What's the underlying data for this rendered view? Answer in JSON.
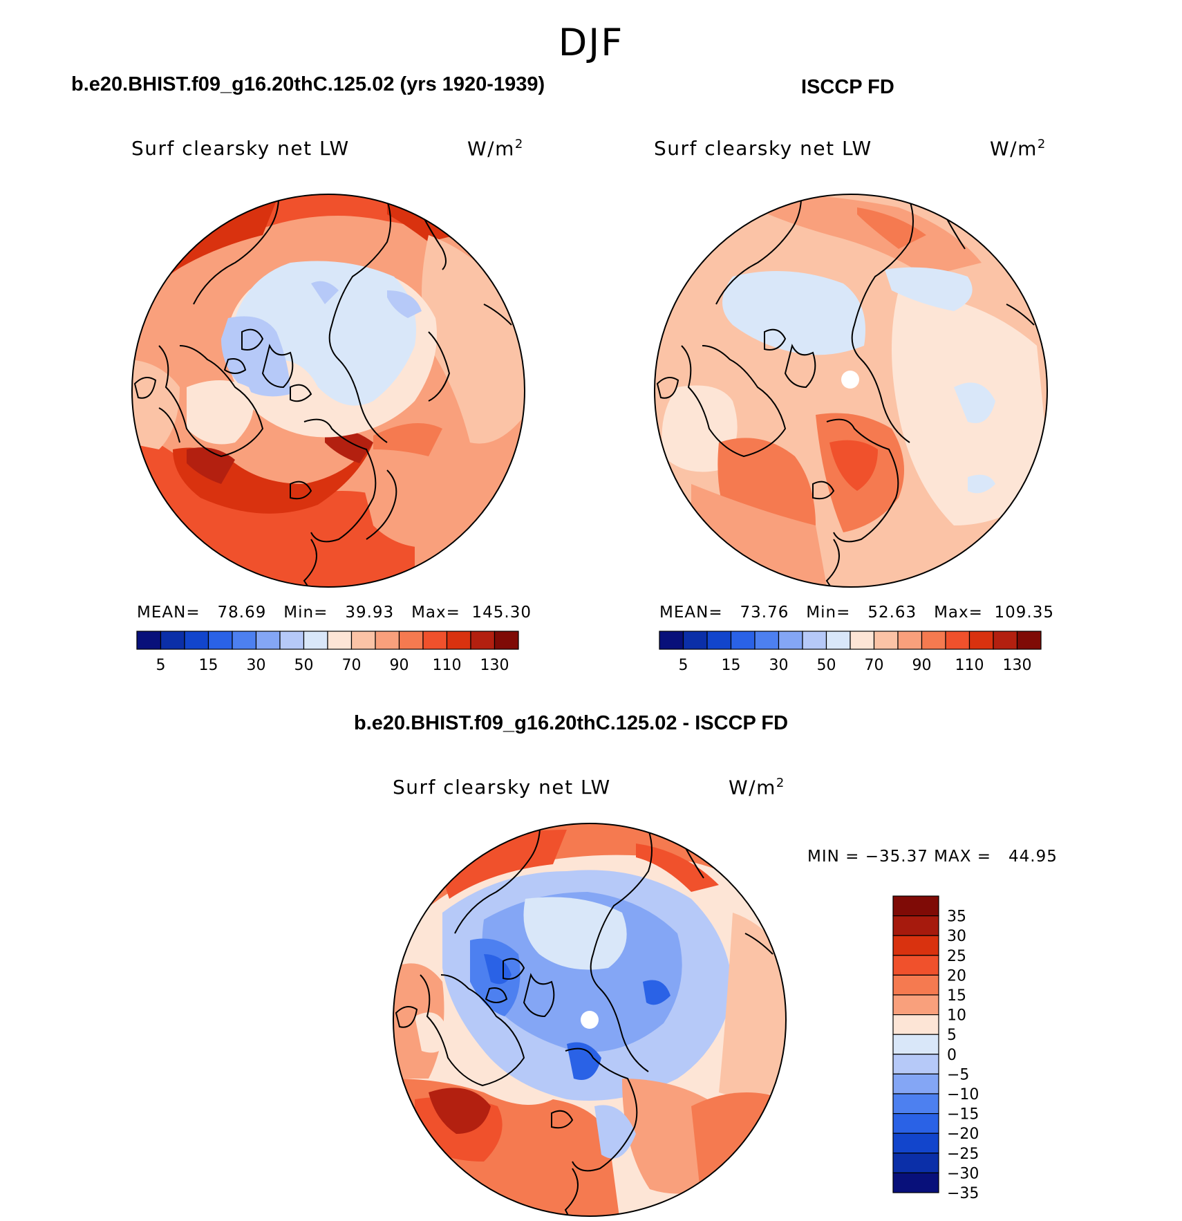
{
  "figure_title": "DJF",
  "panels": [
    {
      "title": "b.e20.BHIST.f09_g16.20thC.125.02 (yrs 1920-1939)",
      "variable": "Surf clearsky net LW",
      "units_base": "W/m",
      "units_exp": "2",
      "stats": "MEAN=   78.69   Min=   39.93   Max=  145.30"
    },
    {
      "title": "ISCCP FD",
      "variable": "Surf clearsky net LW",
      "units_base": "W/m",
      "units_exp": "2",
      "stats": "MEAN=   73.76   Min=   52.63   Max=  109.35"
    },
    {
      "title": "b.e20.BHIST.f09_g16.20thC.125.02 - ISCCP FD",
      "variable": "Surf clearsky net LW",
      "units_base": "W/m",
      "units_exp": "2",
      "stats": "MIN = −35.37 MAX =   44.95"
    }
  ],
  "abs_colorbar": {
    "colors": [
      "#08107a",
      "#0b2fa8",
      "#1245cc",
      "#2a62e6",
      "#4d80f0",
      "#84a6f5",
      "#b6c9f8",
      "#d9e7f9",
      "#fde5d6",
      "#fbc3a6",
      "#f9a07c",
      "#f57a50",
      "#f0512c",
      "#d9320f",
      "#b32010",
      "#7f0b06"
    ],
    "labels": [
      "5",
      "15",
      "30",
      "50",
      "70",
      "90",
      "110",
      "130"
    ]
  },
  "diff_colorbar": {
    "colors": [
      "#7f0b06",
      "#a61a0d",
      "#d9320f",
      "#f0512c",
      "#f57a50",
      "#f9a07c",
      "#fde5d6",
      "#d9e7f9",
      "#b6c9f8",
      "#84a6f5",
      "#4d80f0",
      "#2a62e6",
      "#1245cc",
      "#0b2fa8",
      "#08107a"
    ],
    "labels": [
      "35",
      "30",
      "25",
      "20",
      "15",
      "10",
      "5",
      "0",
      "−5",
      "−10",
      "−15",
      "−20",
      "−25",
      "−30",
      "−35"
    ]
  },
  "chart_data": [
    {
      "type": "heatmap",
      "title": "b.e20.BHIST.f09_g16.20thC.125.02 (yrs 1920-1939)",
      "subtitle": "Surf clearsky net LW",
      "units": "W/m2",
      "projection": "north polar stereographic",
      "season": "DJF",
      "mean": 78.69,
      "min": 39.93,
      "max": 145.3,
      "contour_levels": [
        5,
        10,
        15,
        20,
        30,
        40,
        50,
        60,
        70,
        80,
        90,
        100,
        110,
        120,
        130
      ]
    },
    {
      "type": "heatmap",
      "title": "ISCCP FD",
      "subtitle": "Surf clearsky net LW",
      "units": "W/m2",
      "projection": "north polar stereographic",
      "season": "DJF",
      "mean": 73.76,
      "min": 52.63,
      "max": 109.35,
      "contour_levels": [
        5,
        10,
        15,
        20,
        30,
        40,
        50,
        60,
        70,
        80,
        90,
        100,
        110,
        120,
        130
      ]
    },
    {
      "type": "heatmap",
      "title": "b.e20.BHIST.f09_g16.20thC.125.02 - ISCCP FD",
      "subtitle": "Surf clearsky net LW",
      "units": "W/m2",
      "projection": "north polar stereographic",
      "season": "DJF",
      "min": -35.37,
      "max": 44.95,
      "contour_levels": [
        -35,
        -30,
        -25,
        -20,
        -15,
        -10,
        -5,
        0,
        5,
        10,
        15,
        20,
        25,
        30,
        35
      ]
    }
  ]
}
